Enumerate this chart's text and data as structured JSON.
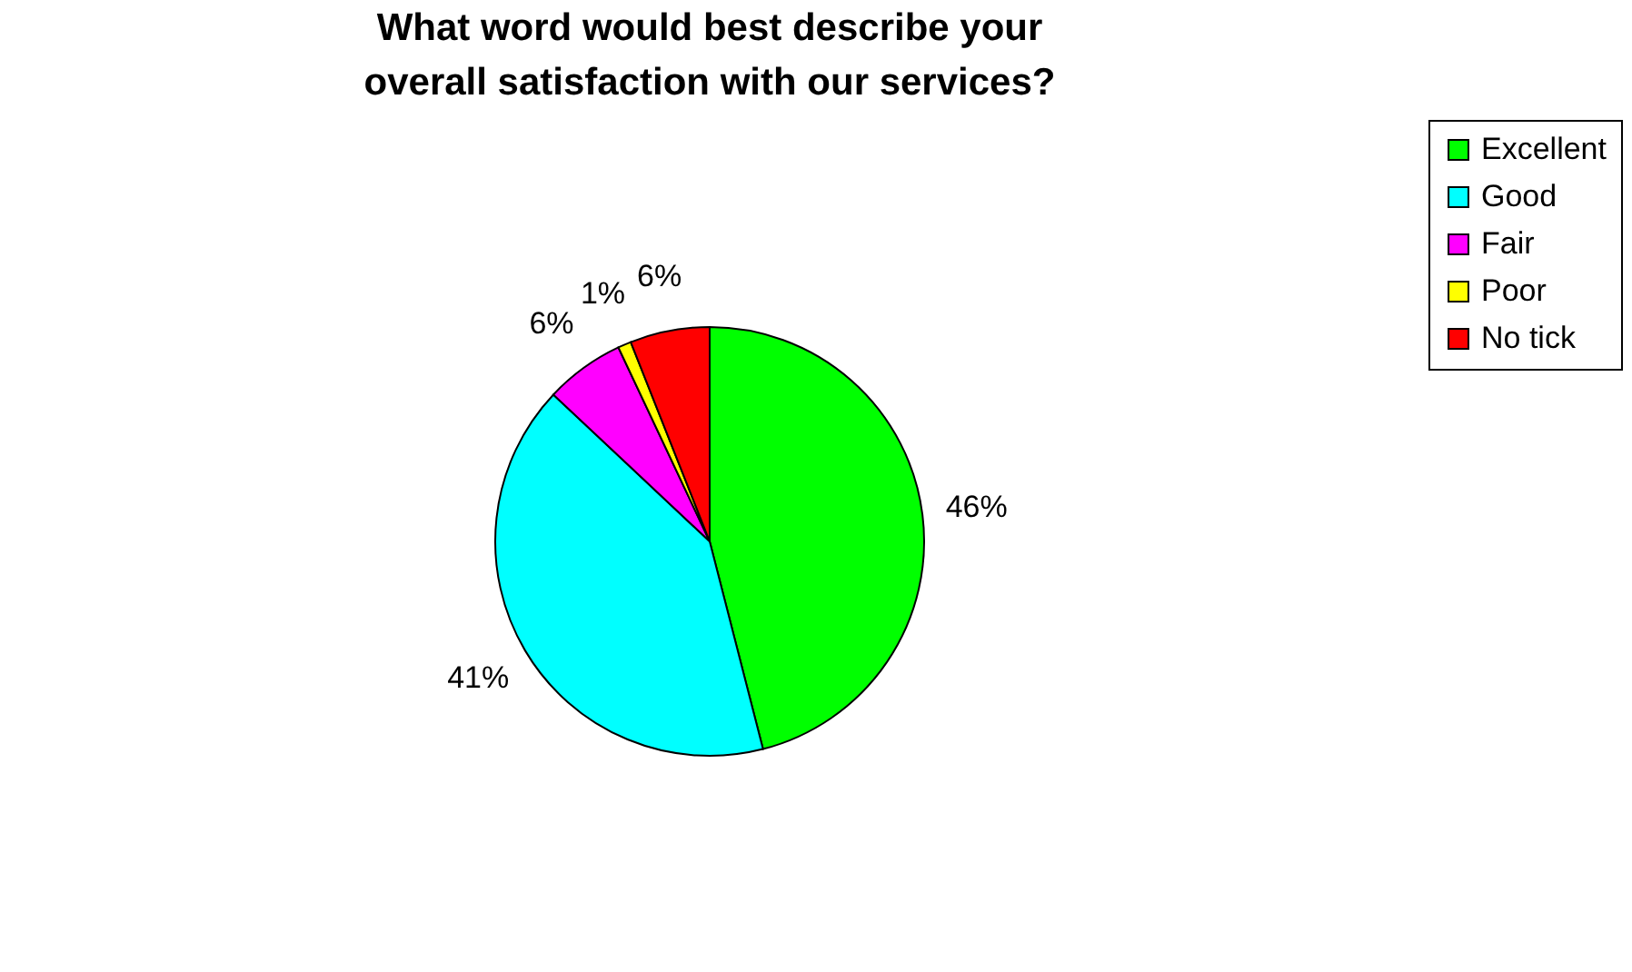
{
  "chart_data": {
    "type": "pie",
    "title": "What word would best describe your overall satisfaction with our services?",
    "categories": [
      "Excellent",
      "Good",
      "Fair",
      "Poor",
      "No tick"
    ],
    "values": [
      46,
      41,
      6,
      1,
      6
    ],
    "value_labels": [
      "46%",
      "41%",
      "6%",
      "1%",
      "6%"
    ],
    "colors": [
      "#00ff00",
      "#00ffff",
      "#ff00ff",
      "#ffff00",
      "#ff0000"
    ],
    "legend": "right"
  }
}
